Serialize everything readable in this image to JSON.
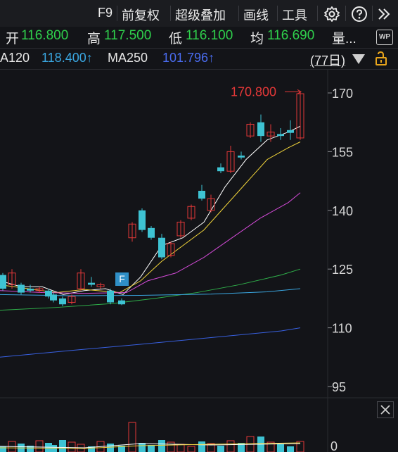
{
  "toolbar": {
    "f9": "F9",
    "restore": "前复权",
    "overlay": "超级叠加",
    "draw": "画线",
    "tools": "工具"
  },
  "quote": {
    "open_label": "开",
    "open": "116.800",
    "high_label": "高",
    "high": "117.500",
    "low_label": "低",
    "low": "116.100",
    "avg_label": "均",
    "avg": "116.690",
    "vol_label": "量..."
  },
  "ma_line": {
    "ma120_label": "A120",
    "ma120": "118.400↑",
    "ma250_label": "MA250",
    "ma250": "101.796↑",
    "period": "(77日)"
  },
  "chart_data": {
    "type": "candlestick",
    "y_ticks": [
      170,
      155,
      140,
      125,
      110,
      95
    ],
    "volume_ticks": [
      0
    ],
    "max_label": "170.800",
    "marker": "F",
    "colors": {
      "up": "#e33838",
      "down": "#3ec3d3",
      "ma5": "#ffffff",
      "ma10": "#f1d43a",
      "ma20": "#d24ad6",
      "ma60": "#2fb04a",
      "ma120": "#3aa6e0",
      "ma250": "#3860e0"
    }
  },
  "icons": {
    "wp": "WP"
  }
}
